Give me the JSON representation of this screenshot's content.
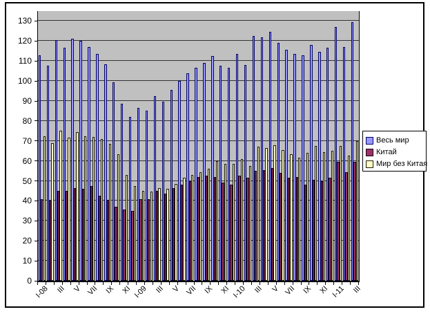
{
  "chart_data": {
    "type": "bar",
    "title": "",
    "xlabel": "",
    "ylabel": "",
    "grid": true,
    "legend_position": "right",
    "plot_background": "#C0C0C0",
    "gridline_color": "#333333",
    "ylim": [
      0,
      135
    ],
    "y_ticks": [
      0,
      10,
      20,
      30,
      40,
      50,
      60,
      70,
      80,
      90,
      100,
      110,
      120,
      130
    ],
    "x_axis_visible_tick_labels": [
      "I-08",
      "III",
      "V",
      "VII",
      "IX",
      "XI",
      "I-09",
      "III",
      "V",
      "VII",
      "IX",
      "XI",
      "I-10",
      "III",
      "V",
      "VII",
      "IX",
      "XI",
      "I-11",
      "III"
    ],
    "categories": [
      "I-08",
      "II-08",
      "III-08",
      "IV-08",
      "V-08",
      "VI-08",
      "VII-08",
      "VIII-08",
      "IX-08",
      "X-08",
      "XI-08",
      "XII-08",
      "I-09",
      "II-09",
      "III-09",
      "IV-09",
      "V-09",
      "VI-09",
      "VII-09",
      "VIII-09",
      "IX-09",
      "X-09",
      "XI-09",
      "XII-09",
      "I-10",
      "II-10",
      "III-10",
      "IV-10",
      "V-10",
      "VI-10",
      "VII-10",
      "VIII-10",
      "IX-10",
      "X-10",
      "XI-10",
      "XII-10",
      "I-11",
      "II-11",
      "III-11"
    ],
    "series": [
      {
        "name": "Весь мир",
        "color": "#9999FF",
        "border_color": "#000066",
        "values": [
          113,
          107.5,
          120.5,
          116.5,
          121,
          120,
          117,
          113.5,
          108.5,
          99.5,
          88.5,
          82,
          86.5,
          85,
          92.5,
          89.5,
          95.5,
          100,
          104,
          106.5,
          109,
          112.5,
          107.5,
          106.5,
          113.5,
          108,
          122.5,
          122,
          124.5,
          119,
          115.5,
          113.5,
          113,
          118,
          114.5,
          116.5,
          127,
          117,
          129.5
        ]
      },
      {
        "name": "Китай",
        "color": "#993366",
        "border_color": "#1a0010",
        "values": [
          41,
          40,
          45,
          45,
          46.5,
          46,
          47.5,
          42.5,
          40.5,
          37,
          35.5,
          35,
          41,
          41,
          45,
          43.5,
          46.5,
          48,
          50,
          52,
          52.5,
          52,
          49,
          48,
          52.5,
          51.5,
          55,
          55.5,
          56.5,
          54,
          51.5,
          52,
          48,
          50.5,
          50,
          51.5,
          59.5,
          54.5,
          59.5
        ]
      },
      {
        "name": "Мир без Китая",
        "color": "#FFFFCC",
        "border_color": "#1a1a00",
        "values": [
          72.5,
          69,
          75,
          71.5,
          74.5,
          72.5,
          72,
          71,
          68.5,
          63.5,
          53,
          47.5,
          45,
          44.5,
          46.5,
          46,
          48.5,
          51.5,
          53,
          54.5,
          56,
          60,
          58.5,
          58.5,
          61,
          57.5,
          67,
          66.5,
          68,
          65.5,
          63.5,
          61.5,
          64,
          67.5,
          64.5,
          65,
          67.5,
          62.5,
          70
        ]
      }
    ]
  }
}
